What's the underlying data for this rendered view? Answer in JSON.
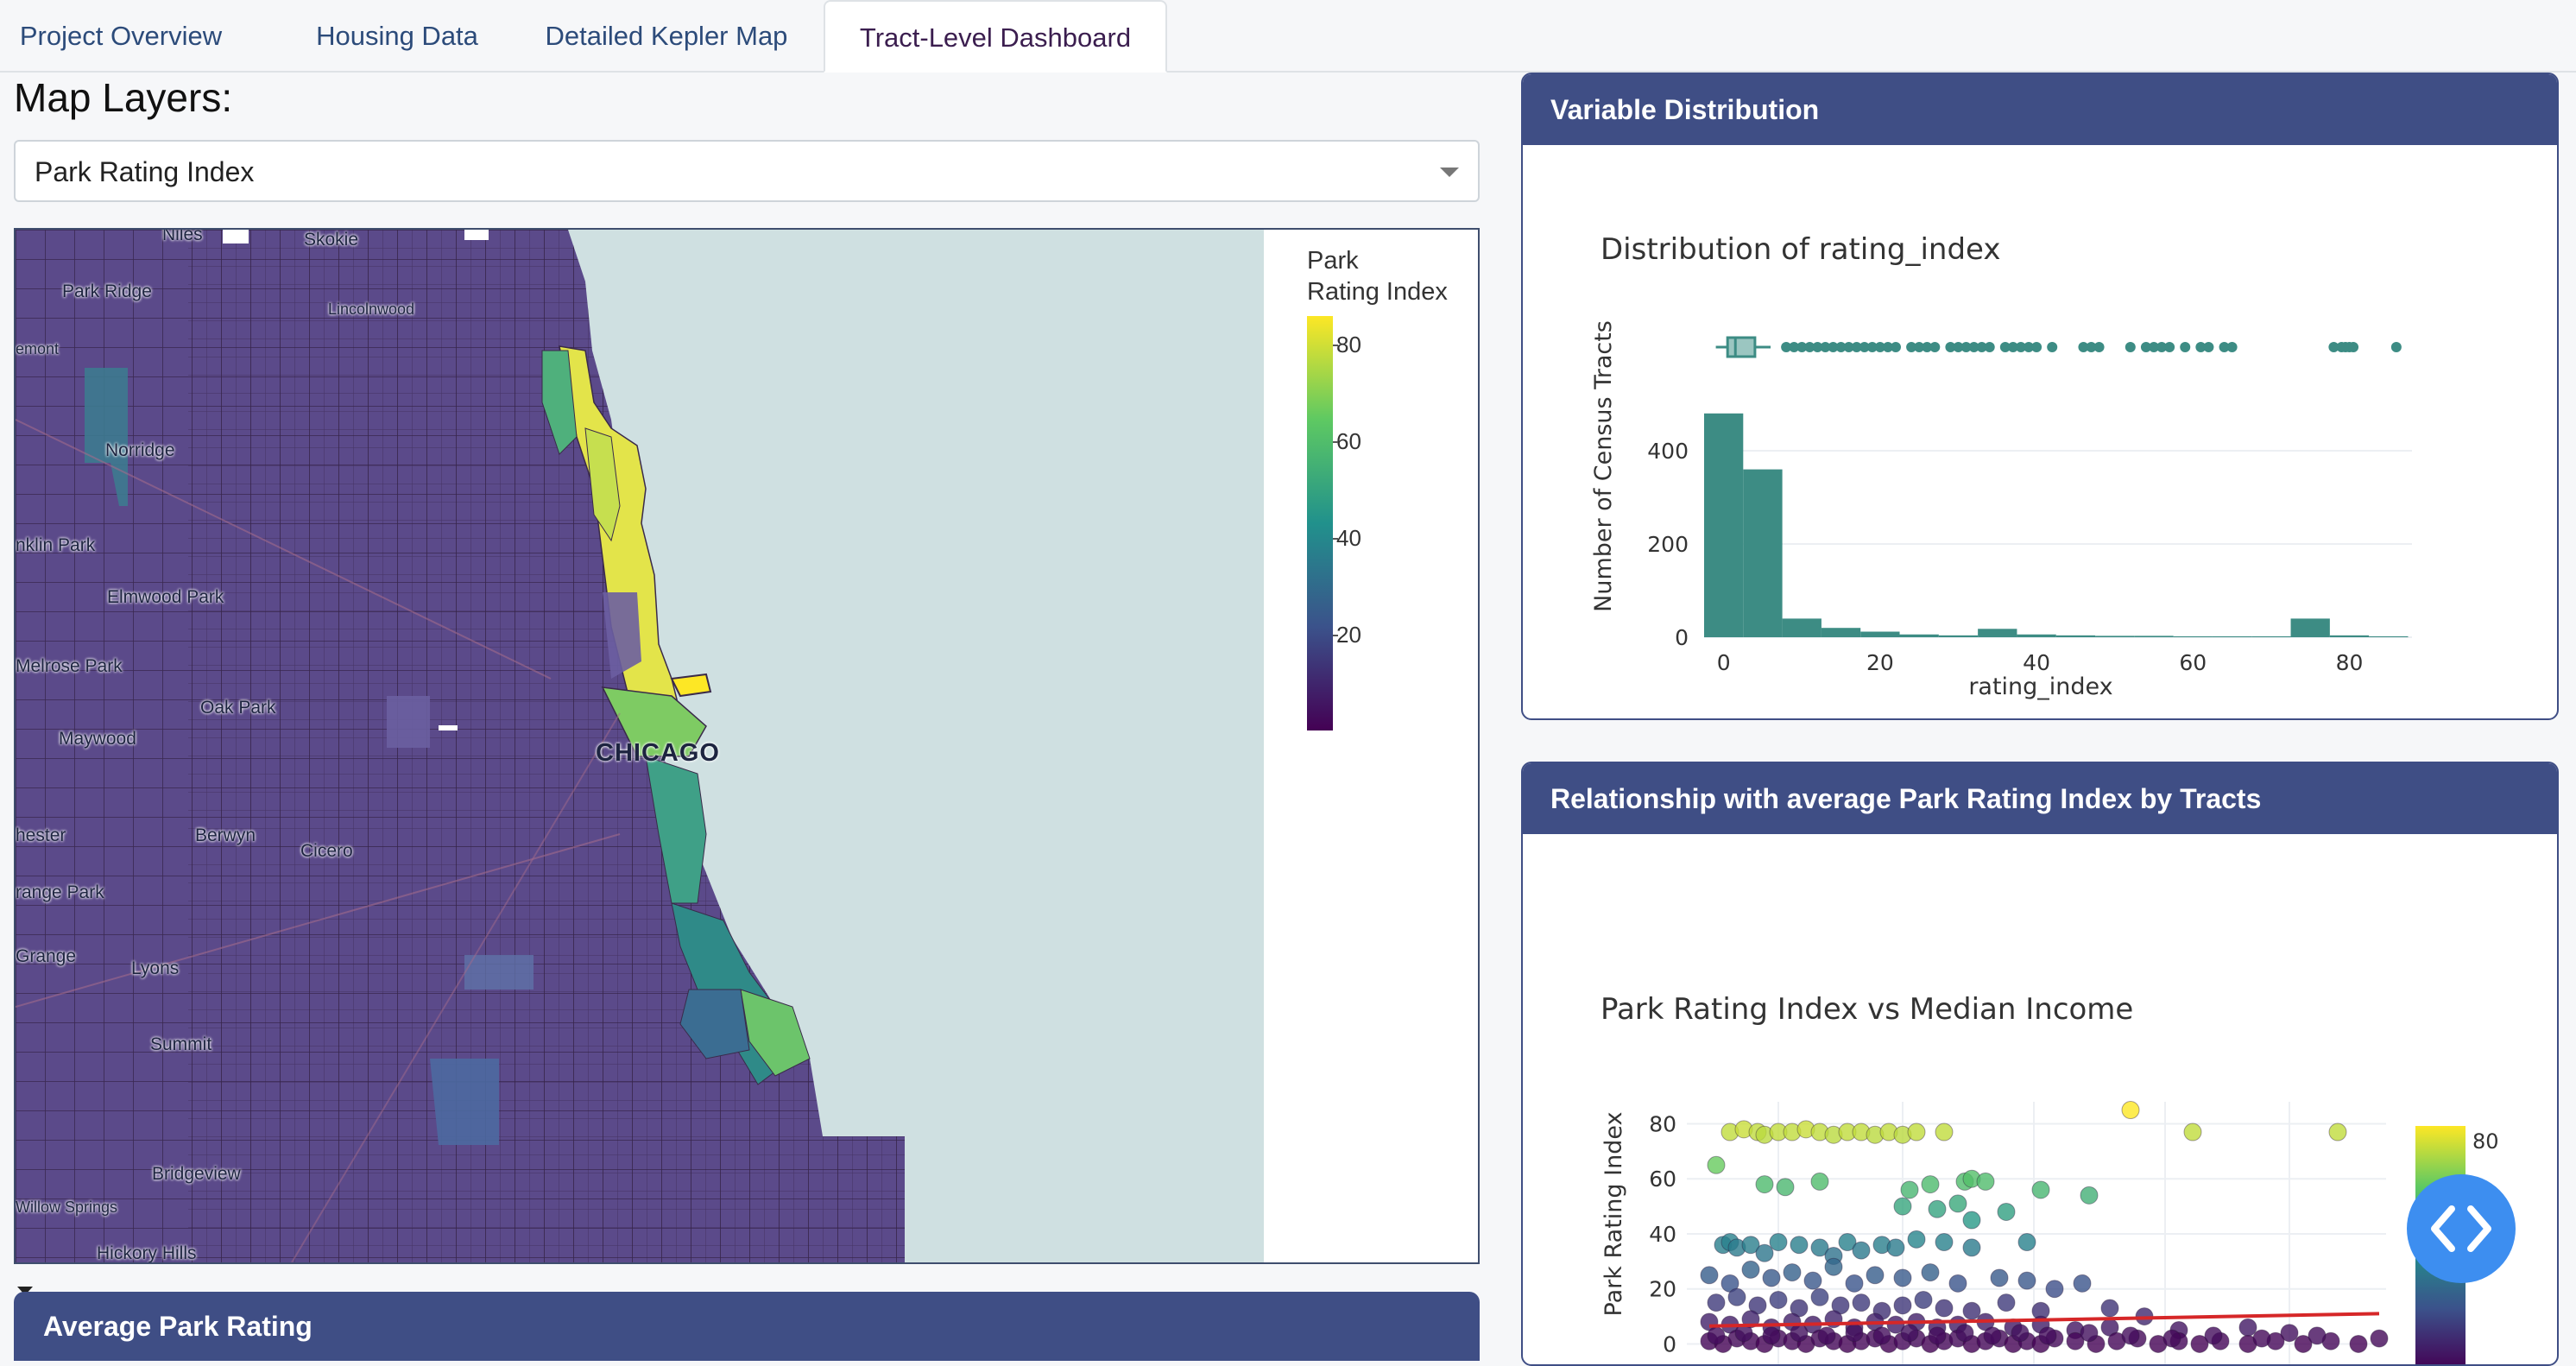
{
  "tabs": [
    {
      "label": "Project Overview",
      "active": false
    },
    {
      "label": "Housing Data",
      "active": false
    },
    {
      "label": "Detailed Kepler Map",
      "active": false
    },
    {
      "label": "Tract-Level Dashboard",
      "active": true
    }
  ],
  "map_layers": {
    "title": "Map Layers:",
    "selected": "Park Rating Index"
  },
  "map": {
    "legend_title_line1": "Park",
    "legend_title_line2": "Rating Index",
    "legend_ticks": [
      "80",
      "60",
      "40",
      "20"
    ],
    "labels": {
      "niles": "Niles",
      "skokie": "Skokie",
      "park_ridge": "Park Ridge",
      "lincolnwood": "Lincolnwood",
      "belmont": "emont",
      "norridge": "Norridge",
      "franklin_park": "nklin Park",
      "elmwood_park": "Elmwood Park",
      "melrose_park": "Melrose Park",
      "oak_park": "Oak Park",
      "maywood": "Maywood",
      "chicago": "CHICAGO",
      "westchester": "hester",
      "berwyn": "Berwyn",
      "cicero": "Cicero",
      "orange_park": "range Park",
      "la_grange": "Grange",
      "lyons": "Lyons",
      "summit": "Summit",
      "bridgeview": "Bridgeview",
      "willow_springs": "Willow Springs",
      "hickory_hills": "Hickory Hills"
    },
    "colors": {
      "land_low": "#5b4a8a",
      "water": "#cfe0e1",
      "high": "#fde725",
      "mid": "#21918c"
    }
  },
  "bottom_card": {
    "title": "Average Park Rating"
  },
  "dist_card": {
    "header": "Variable Distribution"
  },
  "scatter_card": {
    "header": "Relationship with average Park Rating Index by Tracts"
  },
  "chart_data": [
    {
      "type": "bar",
      "title": "Distribution of rating_index",
      "xlabel": "rating_index",
      "ylabel": "Number of Census Tracts",
      "x_ticks": [
        "0",
        "20",
        "40",
        "60",
        "80"
      ],
      "y_ticks": [
        "0",
        "200",
        "400"
      ],
      "xlim": [
        -2.5,
        88
      ],
      "ylim": [
        0,
        500
      ],
      "bin_width": 5,
      "bin_starts": [
        -2.5,
        2.5,
        7.5,
        12.5,
        17.5,
        22.5,
        27.5,
        32.5,
        37.5,
        42.5,
        47.5,
        52.5,
        57.5,
        62.5,
        67.5,
        72.5,
        77.5,
        82.5
      ],
      "values": [
        480,
        360,
        40,
        20,
        12,
        6,
        4,
        18,
        6,
        4,
        3,
        3,
        2,
        2,
        2,
        40,
        4,
        2
      ],
      "box": {
        "q1": 0.5,
        "median": 1.5,
        "q3": 4,
        "whisker_low": -1,
        "whisker_high": 6
      },
      "outliers": [
        8,
        9,
        10,
        11,
        12,
        13,
        14,
        15,
        16,
        17,
        18,
        19,
        20,
        21,
        22,
        24,
        25,
        26,
        27,
        29,
        30,
        31,
        32,
        33,
        34,
        36,
        37,
        38,
        39,
        40,
        42,
        46,
        47,
        48,
        52,
        54,
        55,
        56,
        57,
        59,
        61,
        62,
        64,
        65,
        78,
        79,
        79.5,
        80,
        80.5,
        86
      ],
      "color": "#3d8c84"
    },
    {
      "type": "scatter",
      "title": "Park Rating Index vs Median Income",
      "ylabel": "Park Rating Index",
      "y_ticks": [
        "0",
        "20",
        "40",
        "60",
        "80"
      ],
      "ylim": [
        -3,
        88
      ],
      "colorbar_ticks": [
        "80",
        "60"
      ],
      "trend": {
        "y_start": 6.5,
        "y_end": 11
      },
      "points": [
        [
          0.05,
          77
        ],
        [
          0.07,
          78
        ],
        [
          0.09,
          77
        ],
        [
          0.1,
          76
        ],
        [
          0.12,
          77
        ],
        [
          0.14,
          77
        ],
        [
          0.16,
          78
        ],
        [
          0.18,
          77
        ],
        [
          0.2,
          76
        ],
        [
          0.22,
          77
        ],
        [
          0.24,
          77
        ],
        [
          0.26,
          76
        ],
        [
          0.28,
          77
        ],
        [
          0.3,
          76
        ],
        [
          0.32,
          77
        ],
        [
          0.36,
          77
        ],
        [
          0.63,
          85
        ],
        [
          0.72,
          77
        ],
        [
          0.93,
          77
        ],
        [
          0.03,
          65
        ],
        [
          0.1,
          58
        ],
        [
          0.13,
          57
        ],
        [
          0.18,
          59
        ],
        [
          0.31,
          56
        ],
        [
          0.34,
          58
        ],
        [
          0.39,
          59
        ],
        [
          0.4,
          60
        ],
        [
          0.42,
          59
        ],
        [
          0.5,
          56
        ],
        [
          0.57,
          54
        ],
        [
          0.3,
          50
        ],
        [
          0.35,
          49
        ],
        [
          0.38,
          51
        ],
        [
          0.4,
          45
        ],
        [
          0.45,
          48
        ],
        [
          0.04,
          36
        ],
        [
          0.05,
          37
        ],
        [
          0.06,
          35
        ],
        [
          0.08,
          36
        ],
        [
          0.1,
          33
        ],
        [
          0.12,
          37
        ],
        [
          0.15,
          36
        ],
        [
          0.18,
          35
        ],
        [
          0.2,
          32
        ],
        [
          0.22,
          37
        ],
        [
          0.24,
          34
        ],
        [
          0.27,
          36
        ],
        [
          0.29,
          35
        ],
        [
          0.32,
          38
        ],
        [
          0.36,
          37
        ],
        [
          0.4,
          35
        ],
        [
          0.48,
          37
        ],
        [
          0.02,
          25
        ],
        [
          0.05,
          22
        ],
        [
          0.08,
          27
        ],
        [
          0.11,
          24
        ],
        [
          0.14,
          26
        ],
        [
          0.17,
          23
        ],
        [
          0.2,
          28
        ],
        [
          0.23,
          22
        ],
        [
          0.26,
          25
        ],
        [
          0.3,
          24
        ],
        [
          0.34,
          26
        ],
        [
          0.38,
          22
        ],
        [
          0.44,
          24
        ],
        [
          0.48,
          23
        ],
        [
          0.52,
          20
        ],
        [
          0.56,
          22
        ],
        [
          0.03,
          15
        ],
        [
          0.06,
          17
        ],
        [
          0.09,
          14
        ],
        [
          0.12,
          16
        ],
        [
          0.15,
          13
        ],
        [
          0.18,
          17
        ],
        [
          0.21,
          14
        ],
        [
          0.24,
          15
        ],
        [
          0.27,
          12
        ],
        [
          0.3,
          14
        ],
        [
          0.33,
          16
        ],
        [
          0.36,
          13
        ],
        [
          0.4,
          12
        ],
        [
          0.45,
          15
        ],
        [
          0.5,
          12
        ],
        [
          0.6,
          13
        ],
        [
          0.65,
          10
        ],
        [
          0.02,
          8
        ],
        [
          0.05,
          7
        ],
        [
          0.08,
          9
        ],
        [
          0.11,
          6
        ],
        [
          0.14,
          8
        ],
        [
          0.17,
          7
        ],
        [
          0.2,
          9
        ],
        [
          0.23,
          6
        ],
        [
          0.26,
          8
        ],
        [
          0.29,
          7
        ],
        [
          0.32,
          8
        ],
        [
          0.35,
          6
        ],
        [
          0.38,
          7
        ],
        [
          0.42,
          8
        ],
        [
          0.46,
          6
        ],
        [
          0.5,
          7
        ],
        [
          0.55,
          5
        ],
        [
          0.6,
          6
        ],
        [
          0.7,
          5
        ],
        [
          0.8,
          6
        ],
        [
          0.86,
          4
        ],
        [
          0.02,
          1
        ],
        [
          0.04,
          0
        ],
        [
          0.06,
          2
        ],
        [
          0.08,
          1
        ],
        [
          0.1,
          0
        ],
        [
          0.12,
          2
        ],
        [
          0.14,
          1
        ],
        [
          0.16,
          0
        ],
        [
          0.18,
          2
        ],
        [
          0.2,
          1
        ],
        [
          0.22,
          0
        ],
        [
          0.24,
          1
        ],
        [
          0.26,
          2
        ],
        [
          0.28,
          0
        ],
        [
          0.3,
          1
        ],
        [
          0.32,
          2
        ],
        [
          0.34,
          0
        ],
        [
          0.36,
          1
        ],
        [
          0.38,
          2
        ],
        [
          0.4,
          0
        ],
        [
          0.42,
          1
        ],
        [
          0.44,
          2
        ],
        [
          0.46,
          0
        ],
        [
          0.48,
          1
        ],
        [
          0.5,
          0
        ],
        [
          0.52,
          2
        ],
        [
          0.55,
          1
        ],
        [
          0.58,
          0
        ],
        [
          0.61,
          1
        ],
        [
          0.64,
          2
        ],
        [
          0.67,
          0
        ],
        [
          0.7,
          1
        ],
        [
          0.73,
          0
        ],
        [
          0.76,
          1
        ],
        [
          0.8,
          0
        ],
        [
          0.84,
          1
        ],
        [
          0.88,
          0
        ],
        [
          0.92,
          1
        ],
        [
          0.96,
          0
        ],
        [
          0.99,
          2
        ],
        [
          0.03,
          3
        ],
        [
          0.07,
          4
        ],
        [
          0.11,
          3
        ],
        [
          0.15,
          4
        ],
        [
          0.19,
          3
        ],
        [
          0.23,
          4
        ],
        [
          0.27,
          3
        ],
        [
          0.31,
          4
        ],
        [
          0.35,
          3
        ],
        [
          0.39,
          4
        ],
        [
          0.43,
          3
        ],
        [
          0.47,
          4
        ],
        [
          0.51,
          3
        ],
        [
          0.57,
          4
        ],
        [
          0.63,
          3
        ],
        [
          0.69,
          2
        ],
        [
          0.75,
          3
        ],
        [
          0.82,
          2
        ],
        [
          0.9,
          3
        ]
      ]
    }
  ]
}
